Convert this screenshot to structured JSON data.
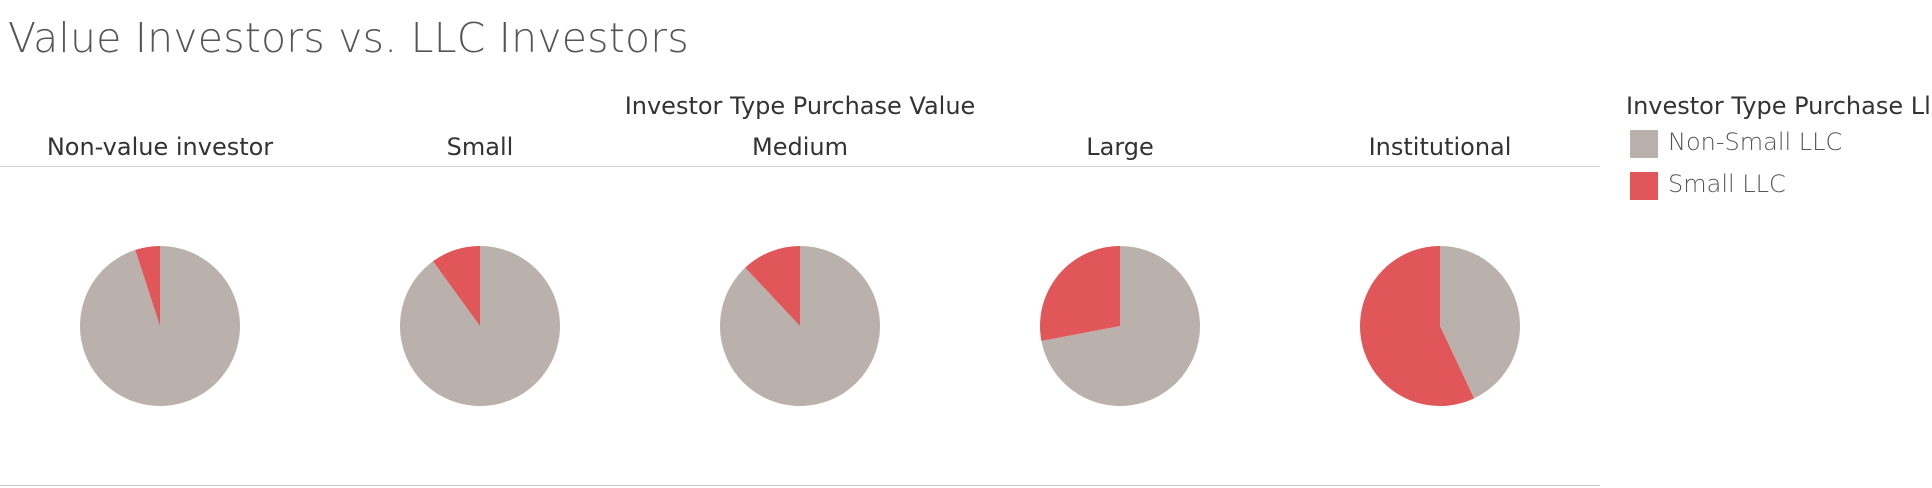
{
  "title": "Value Investors vs. LLC Investors",
  "colors": {
    "non_small_llc": "#bab0ac",
    "small_llc": "#e15759"
  },
  "chart_data": {
    "type": "pie",
    "title": "Value Investors vs. LLC Investors",
    "column_header": "Investor Type Purchase Value",
    "legend": {
      "title": "Investor Type Purchase Llc",
      "position": "right",
      "entries": [
        "Non-Small LLC",
        "Small LLC"
      ]
    },
    "series_names": [
      "Non-Small LLC",
      "Small LLC"
    ],
    "categories": [
      "Non-value investor",
      "Small",
      "Medium",
      "Large",
      "Institutional"
    ],
    "values": {
      "Non-Small LLC": [
        0.95,
        0.9,
        0.88,
        0.72,
        0.43
      ],
      "Small LLC": [
        0.05,
        0.1,
        0.12,
        0.28,
        0.57
      ]
    }
  }
}
